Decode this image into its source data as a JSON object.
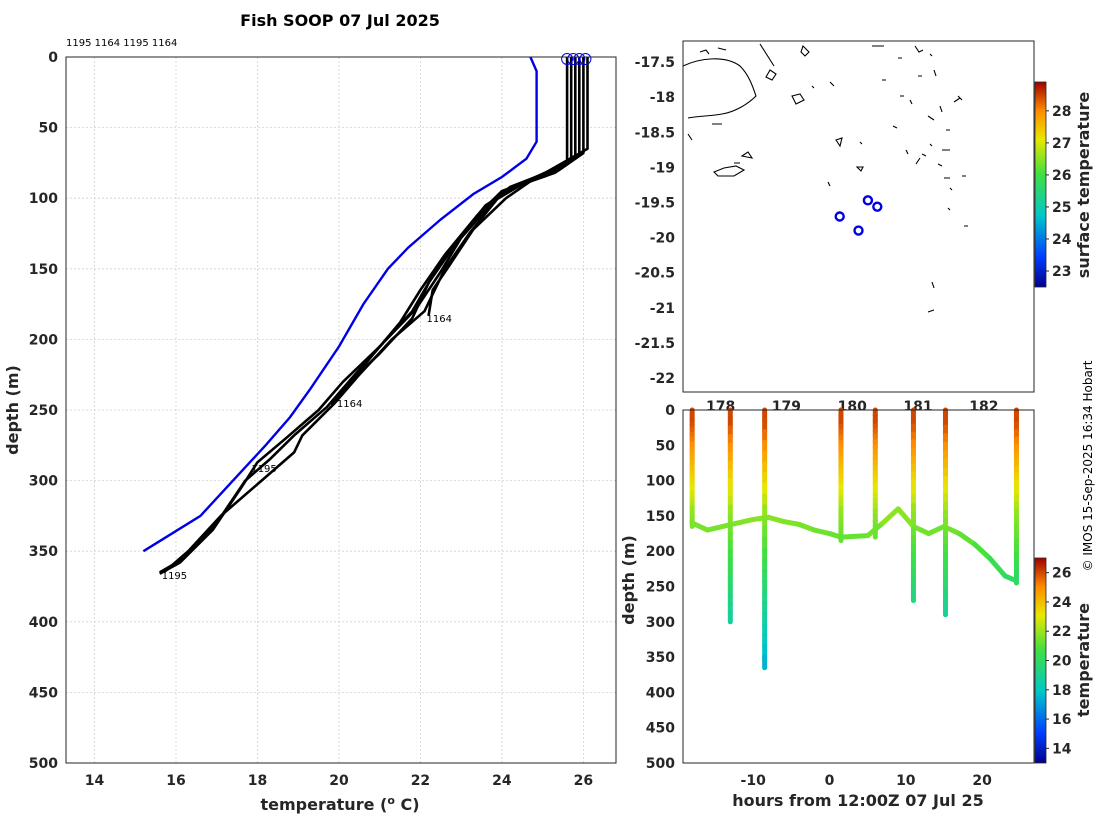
{
  "chart_data": [
    {
      "id": "profiles",
      "type": "line",
      "title": "Fish SOOP 07 Jul 2025",
      "xlabel": "temperature (",
      "xlabel_sup": "o",
      "xlabel_end": " C)",
      "ylabel": "depth (m)",
      "xlim": [
        13.3,
        26.8
      ],
      "ylim": [
        0,
        500
      ],
      "xticks": [
        14,
        16,
        18,
        20,
        22,
        24,
        26
      ],
      "yticks": [
        0,
        50,
        100,
        150,
        200,
        250,
        300,
        350,
        400,
        450,
        500
      ],
      "top_ids": [
        "1195",
        "1164",
        "1195",
        "1164"
      ],
      "climatology": {
        "name": "reference",
        "color": "#0000e6",
        "points": [
          [
            24.7,
            0
          ],
          [
            24.85,
            10
          ],
          [
            24.85,
            60
          ],
          [
            24.6,
            72
          ],
          [
            24.0,
            85
          ],
          [
            23.3,
            97
          ],
          [
            22.5,
            115
          ],
          [
            21.7,
            135
          ],
          [
            21.2,
            150
          ],
          [
            20.6,
            175
          ],
          [
            20.0,
            205
          ],
          [
            19.3,
            235
          ],
          [
            18.8,
            255
          ],
          [
            18.2,
            275
          ],
          [
            17.4,
            300
          ],
          [
            16.6,
            325
          ],
          [
            15.2,
            350
          ]
        ]
      },
      "series_color": "#000000",
      "series": [
        {
          "name": "1195-a",
          "points": [
            [
              26.1,
              0
            ],
            [
              26.1,
              65
            ],
            [
              25.2,
              80
            ],
            [
              24.6,
              88
            ],
            [
              23.9,
              100
            ],
            [
              23.2,
              125
            ],
            [
              22.6,
              150
            ],
            [
              22.1,
              180
            ],
            [
              21.3,
              200
            ],
            [
              20.5,
              225
            ],
            [
              19.9,
              245
            ],
            [
              19.1,
              268
            ],
            [
              18.9,
              280
            ],
            [
              18.1,
              300
            ],
            [
              17.1,
              325
            ],
            [
              16.3,
              350
            ],
            [
              15.7,
              365
            ]
          ]
        },
        {
          "name": "1195-b",
          "points": [
            [
              25.9,
              0
            ],
            [
              25.9,
              70
            ],
            [
              25.3,
              82
            ],
            [
              24.5,
              90
            ],
            [
              23.8,
              102
            ],
            [
              23.0,
              128
            ],
            [
              22.5,
              152
            ],
            [
              21.9,
              178
            ],
            [
              21.1,
              202
            ],
            [
              20.3,
              228
            ],
            [
              19.7,
              248
            ],
            [
              18.9,
              268
            ],
            [
              18.3,
              285
            ],
            [
              17.7,
              300
            ],
            [
              17.0,
              330
            ],
            [
              16.2,
              355
            ],
            [
              15.6,
              365
            ]
          ]
        },
        {
          "name": "1195-c",
          "points": [
            [
              25.7,
              0
            ],
            [
              25.7,
              72
            ],
            [
              25.1,
              84
            ],
            [
              24.3,
              92
            ],
            [
              23.6,
              105
            ],
            [
              22.9,
              130
            ],
            [
              22.3,
              155
            ],
            [
              21.8,
              180
            ],
            [
              21.0,
              205
            ],
            [
              20.1,
              230
            ],
            [
              19.5,
              250
            ],
            [
              18.7,
              270
            ],
            [
              18.0,
              287
            ],
            [
              17.6,
              305
            ],
            [
              16.9,
              335
            ],
            [
              16.1,
              358
            ],
            [
              15.6,
              366
            ]
          ]
        },
        {
          "name": "1164-a",
          "points": [
            [
              26.0,
              0
            ],
            [
              26.0,
              68
            ],
            [
              25.4,
              80
            ],
            [
              24.7,
              88
            ],
            [
              24.1,
              100
            ],
            [
              23.3,
              122
            ],
            [
              22.7,
              148
            ],
            [
              22.3,
              165
            ],
            [
              22.2,
              183
            ]
          ]
        },
        {
          "name": "1164-b",
          "points": [
            [
              25.8,
              0
            ],
            [
              25.8,
              70
            ],
            [
              25.0,
              83
            ],
            [
              24.2,
              92
            ],
            [
              23.5,
              110
            ],
            [
              22.8,
              135
            ],
            [
              22.2,
              160
            ],
            [
              21.8,
              185
            ],
            [
              21.0,
              210
            ],
            [
              20.2,
              232
            ],
            [
              19.8,
              246
            ]
          ]
        },
        {
          "name": "1164-c",
          "points": [
            [
              25.6,
              0
            ],
            [
              25.6,
              74
            ],
            [
              24.9,
              85
            ],
            [
              24.0,
              95
            ],
            [
              23.4,
              112
            ],
            [
              22.6,
              140
            ],
            [
              22.0,
              165
            ],
            [
              21.5,
              188
            ],
            [
              20.8,
              212
            ],
            [
              20.0,
              240
            ]
          ]
        }
      ],
      "annotations": [
        {
          "text": "1164",
          "x": 22.1,
          "y": 185
        },
        {
          "text": "1164",
          "x": 19.9,
          "y": 245
        },
        {
          "text": "1195",
          "x": 17.8,
          "y": 291
        },
        {
          "text": "1195",
          "x": 15.6,
          "y": 367
        }
      ],
      "surface_markers": [
        25.6,
        25.75,
        25.9,
        26.05
      ]
    },
    {
      "id": "map",
      "type": "scatter",
      "xticks_labels": [
        "178",
        "179",
        "180",
        "181",
        "182"
      ],
      "xlim": [
        177.3,
        182.9
      ],
      "ylim": [
        -22.2,
        -17.2
      ],
      "yticks": [
        -17.5,
        -18,
        -18.5,
        -19,
        -19.5,
        -20,
        -20.5,
        -21,
        -21.5,
        -22
      ],
      "stations": [
        [
          179.8,
          -19.7
        ],
        [
          180.1,
          -19.9
        ],
        [
          180.25,
          -19.47
        ],
        [
          180.4,
          -19.56
        ]
      ],
      "station_color": "#0000e6",
      "colorbar": {
        "label": "surface temperature",
        "min": 22.5,
        "max": 28.9,
        "ticks": [
          23,
          24,
          25,
          26,
          27,
          28
        ]
      }
    },
    {
      "id": "section",
      "type": "scatter",
      "xlabel": "hours from 12:00Z 07 Jul 25",
      "ylabel": "depth (m)",
      "xlim": [
        -19.2,
        26.8
      ],
      "ylim": [
        0,
        500
      ],
      "xticks": [
        -10,
        0,
        10,
        20
      ],
      "yticks": [
        0,
        50,
        100,
        150,
        200,
        250,
        300,
        350,
        400,
        450,
        500
      ],
      "thermocline_hours": [
        -18.0,
        -16.0,
        -14.0,
        -12.0,
        -10.0,
        -8.0,
        -6.0,
        -4.0,
        -2.0,
        0.0,
        1.5,
        5.0,
        7.0,
        9.0,
        11.0,
        13.0,
        15.0,
        17.0,
        19.0,
        21.0,
        23.0,
        24.5
      ],
      "thermocline_depths": [
        160,
        170,
        165,
        160,
        155,
        152,
        158,
        162,
        170,
        175,
        180,
        178,
        160,
        140,
        165,
        175,
        165,
        175,
        190,
        210,
        235,
        242
      ],
      "casts": [
        {
          "hour": -18.0,
          "max_depth": 165
        },
        {
          "hour": -13.0,
          "max_depth": 300
        },
        {
          "hour": -8.5,
          "max_depth": 365
        },
        {
          "hour": 1.5,
          "max_depth": 185
        },
        {
          "hour": 6.0,
          "max_depth": 180
        },
        {
          "hour": 11.0,
          "max_depth": 270
        },
        {
          "hour": 15.2,
          "max_depth": 290
        },
        {
          "hour": 24.5,
          "max_depth": 245
        }
      ],
      "colorbar": {
        "label": "temperature",
        "min": 13,
        "max": 27,
        "ticks": [
          14,
          16,
          18,
          20,
          22,
          24,
          26
        ]
      }
    }
  ],
  "credit": "© IMOS 15-Sep-2025 16:34 Hobart"
}
